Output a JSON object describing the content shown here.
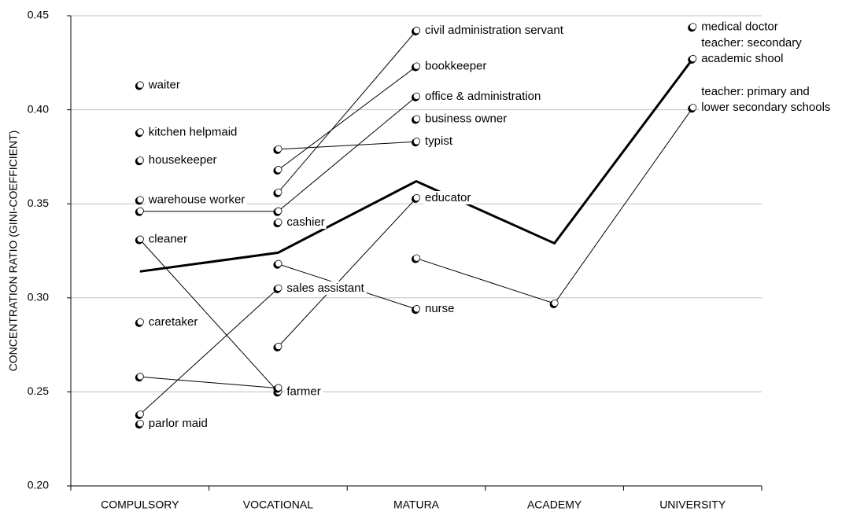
{
  "chart_data": {
    "type": "line",
    "y_label": "CONCENTRATION RATIO (GINI-COEFFICIENT)",
    "categories": [
      "COMPULSORY",
      "VOCATIONAL",
      "MATURA",
      "ACADEMY",
      "UNIVERSITY"
    ],
    "ylim": [
      0.2,
      0.45
    ],
    "yticks": [
      {
        "value": 0.2,
        "label": "0.20"
      },
      0.25,
      {
        "value": 0.3,
        "label": "0.30"
      },
      0.35,
      {
        "value": 0.4,
        "label": "0.40"
      },
      0.45
    ],
    "grid": true,
    "series": [
      {
        "color": "#000000",
        "markers": false,
        "values": [
          0.314,
          0.324,
          0.362,
          0.329,
          0.427
        ]
      },
      {
        "color": "#000000",
        "values": [
          0.413,
          null,
          null,
          null,
          null
        ],
        "labels": [
          "waiter",
          null,
          null,
          null,
          null
        ]
      },
      {
        "color": "#000000",
        "values": [
          0.388,
          null,
          null,
          null,
          null
        ],
        "labels": [
          "kitchen helpmaid",
          null,
          null,
          null,
          null
        ]
      },
      {
        "color": "#000000",
        "values": [
          0.373,
          null,
          null,
          null,
          null
        ],
        "labels": [
          "housekeeper",
          null,
          null,
          null,
          null
        ]
      },
      {
        "color": "#000000",
        "values": [
          0.352,
          null,
          null,
          null,
          null
        ],
        "labels": [
          "warehouse worker",
          null,
          null,
          null,
          null
        ]
      },
      {
        "color": "#000000",
        "values": [
          0.346,
          0.346,
          0.407,
          null,
          null
        ],
        "labels": [
          null,
          null,
          "office & administration",
          null,
          null
        ]
      },
      {
        "color": "#000000",
        "values": [
          0.331,
          0.25,
          null,
          null,
          null
        ],
        "labels": [
          "cleaner",
          "farmer",
          null,
          null,
          null
        ]
      },
      {
        "color": "#000000",
        "values": [
          0.287,
          null,
          null,
          null,
          null
        ],
        "labels": [
          "caretaker",
          null,
          null,
          null,
          null
        ]
      },
      {
        "color": "#000000",
        "values": [
          0.258,
          0.252,
          null,
          null,
          null
        ]
      },
      {
        "color": "#000000",
        "values": [
          0.238,
          0.305,
          null,
          null,
          null
        ],
        "labels": [
          null,
          "sales assistant",
          null,
          null,
          null
        ]
      },
      {
        "color": "#000000",
        "values": [
          0.233,
          null,
          null,
          null,
          null
        ],
        "labels": [
          "parlor maid",
          null,
          null,
          null,
          null
        ]
      },
      {
        "color": "#000000",
        "values": [
          null,
          0.379,
          0.383,
          null,
          null
        ],
        "labels": [
          null,
          null,
          "typist",
          null,
          null
        ]
      },
      {
        "color": "#000000",
        "values": [
          null,
          0.368,
          0.423,
          null,
          null
        ],
        "labels": [
          null,
          null,
          "bookkeeper",
          null,
          null
        ]
      },
      {
        "color": "#000000",
        "values": [
          null,
          0.356,
          0.442,
          null,
          null
        ],
        "labels": [
          null,
          null,
          "civil administration servant",
          null,
          null
        ]
      },
      {
        "color": "#000000",
        "values": [
          null,
          0.34,
          null,
          null,
          null
        ],
        "labels": [
          null,
          "cashier",
          null,
          null,
          null
        ]
      },
      {
        "color": "#000000",
        "values": [
          null,
          0.318,
          0.294,
          null,
          null
        ],
        "labels": [
          null,
          null,
          "nurse",
          null,
          null
        ]
      },
      {
        "color": "#000000",
        "values": [
          null,
          0.274,
          0.353,
          null,
          null
        ],
        "labels": [
          null,
          null,
          "educator",
          null,
          null
        ]
      },
      {
        "color": "#000000",
        "values": [
          null,
          null,
          0.395,
          null,
          null
        ],
        "labels": [
          null,
          null,
          "business owner",
          null,
          null
        ]
      },
      {
        "color": "#000000",
        "values": [
          null,
          null,
          0.321,
          0.297,
          0.401
        ],
        "labels": [
          null,
          null,
          null,
          null,
          [
            "teacher: primary and",
            "lower secondary schools"
          ]
        ]
      },
      {
        "color": "#000000",
        "values": [
          null,
          null,
          null,
          null,
          0.444
        ],
        "labels": [
          null,
          null,
          null,
          null,
          "medical doctor"
        ]
      },
      {
        "color": "#000000",
        "values": [
          null,
          null,
          null,
          null,
          0.427
        ],
        "labels": [
          null,
          null,
          null,
          null,
          [
            "teacher: secondary",
            "academic shool"
          ]
        ]
      }
    ]
  }
}
